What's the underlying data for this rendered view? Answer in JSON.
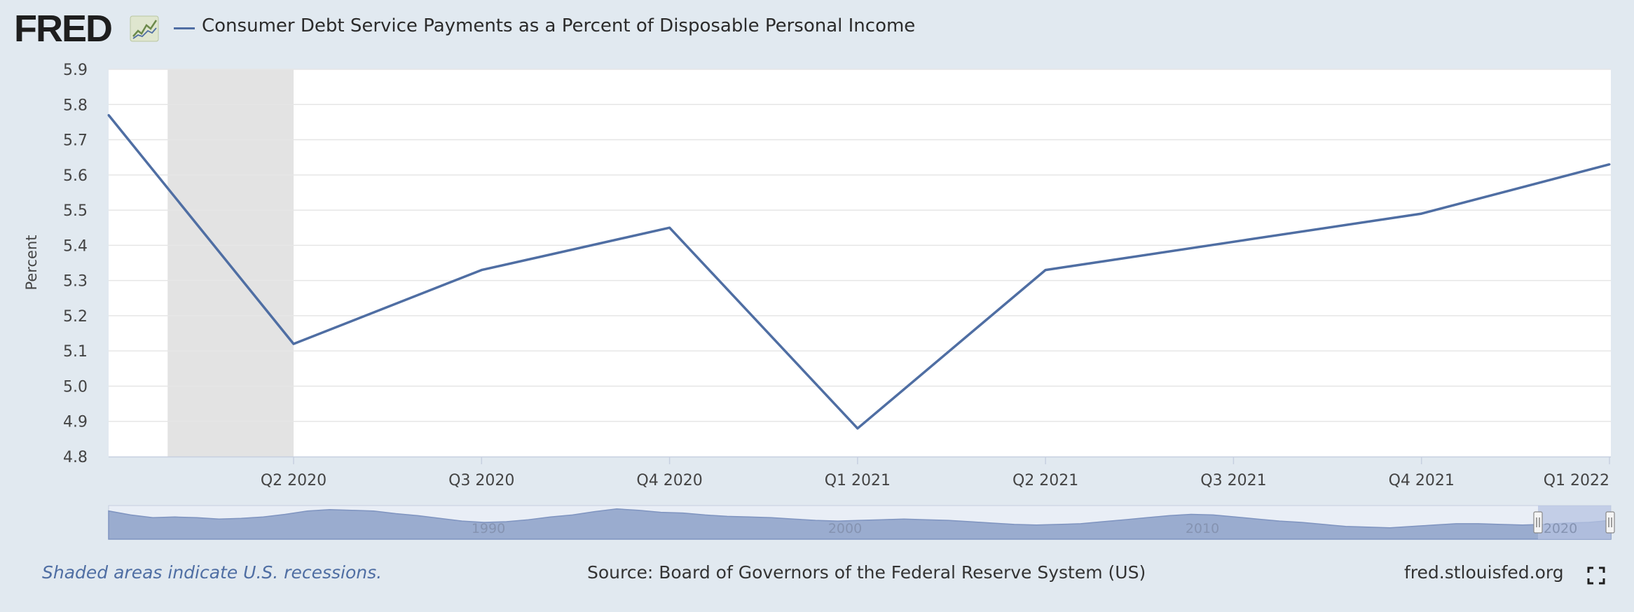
{
  "header": {
    "logo_text": "FRED",
    "title": "Consumer Debt Service Payments as a Percent of Disposable Personal Income",
    "line_color": "#4f6ea3"
  },
  "chart_data": {
    "type": "line",
    "title": "Consumer Debt Service Payments as a Percent of Disposable Personal Income",
    "ylabel": "Percent",
    "xlabel": "",
    "ylim": [
      4.8,
      5.9
    ],
    "yticks": [
      4.8,
      4.9,
      5.0,
      5.1,
      5.2,
      5.3,
      5.4,
      5.5,
      5.6,
      5.7,
      5.8,
      5.9
    ],
    "ytick_labels": [
      "4.8",
      "4.9",
      "5.0",
      "5.1",
      "5.2",
      "5.3",
      "5.4",
      "5.5",
      "5.6",
      "5.7",
      "5.8",
      "5.9"
    ],
    "x_ticks": [
      "Q2 2020",
      "Q3 2020",
      "Q4 2020",
      "Q1 2021",
      "Q2 2021",
      "Q3 2021",
      "Q4 2021",
      "Q1 2022"
    ],
    "series": [
      {
        "x": [
          "Q1 2020",
          "Q2 2020",
          "Q3 2020",
          "Q4 2020",
          "Q1 2021",
          "Q2 2021",
          "Q3 2021",
          "Q4 2021",
          "Q1 2022"
        ],
        "values": [
          5.77,
          5.12,
          5.33,
          5.45,
          4.88,
          5.33,
          5.41,
          5.49,
          5.63
        ],
        "color": "#4f6ea3"
      }
    ],
    "recession_shading": {
      "start_quarter_offset": 0.33,
      "end": "Q2 2020",
      "color": "#e3e3e3"
    },
    "grid": true,
    "navigator": {
      "labels": [
        "1990",
        "2000",
        "2010",
        "2020"
      ],
      "fill_color": "#9aaccf",
      "selected_color": "#b5c3e2",
      "profile": [
        12.2,
        11.6,
        11.2,
        11.3,
        11.2,
        11.0,
        11.1,
        11.3,
        11.7,
        12.2,
        12.4,
        12.3,
        12.2,
        11.8,
        11.5,
        11.1,
        10.7,
        10.5,
        10.6,
        10.9,
        11.3,
        11.6,
        12.1,
        12.5,
        12.3,
        12.0,
        11.9,
        11.6,
        11.4,
        11.3,
        11.2,
        11.0,
        10.8,
        10.7,
        10.8,
        10.9,
        11.0,
        10.9,
        10.8,
        10.6,
        10.4,
        10.2,
        10.1,
        10.2,
        10.3,
        10.6,
        10.9,
        11.2,
        11.5,
        11.7,
        11.6,
        11.3,
        11.0,
        10.7,
        10.5,
        10.2,
        9.9,
        9.8,
        9.7,
        9.9,
        10.1,
        10.3,
        10.3,
        10.2,
        10.1,
        10.2,
        10.4,
        10.5,
        10.8
      ]
    }
  },
  "footer": {
    "recession_note": "Shaded areas indicate U.S. recessions.",
    "source": "Source: Board of Governors of the Federal Reserve System (US)",
    "url": "fred.stlouisfed.org"
  },
  "icons": {
    "fullscreen": "fullscreen-icon",
    "logo_graph": "line-graph-icon"
  }
}
